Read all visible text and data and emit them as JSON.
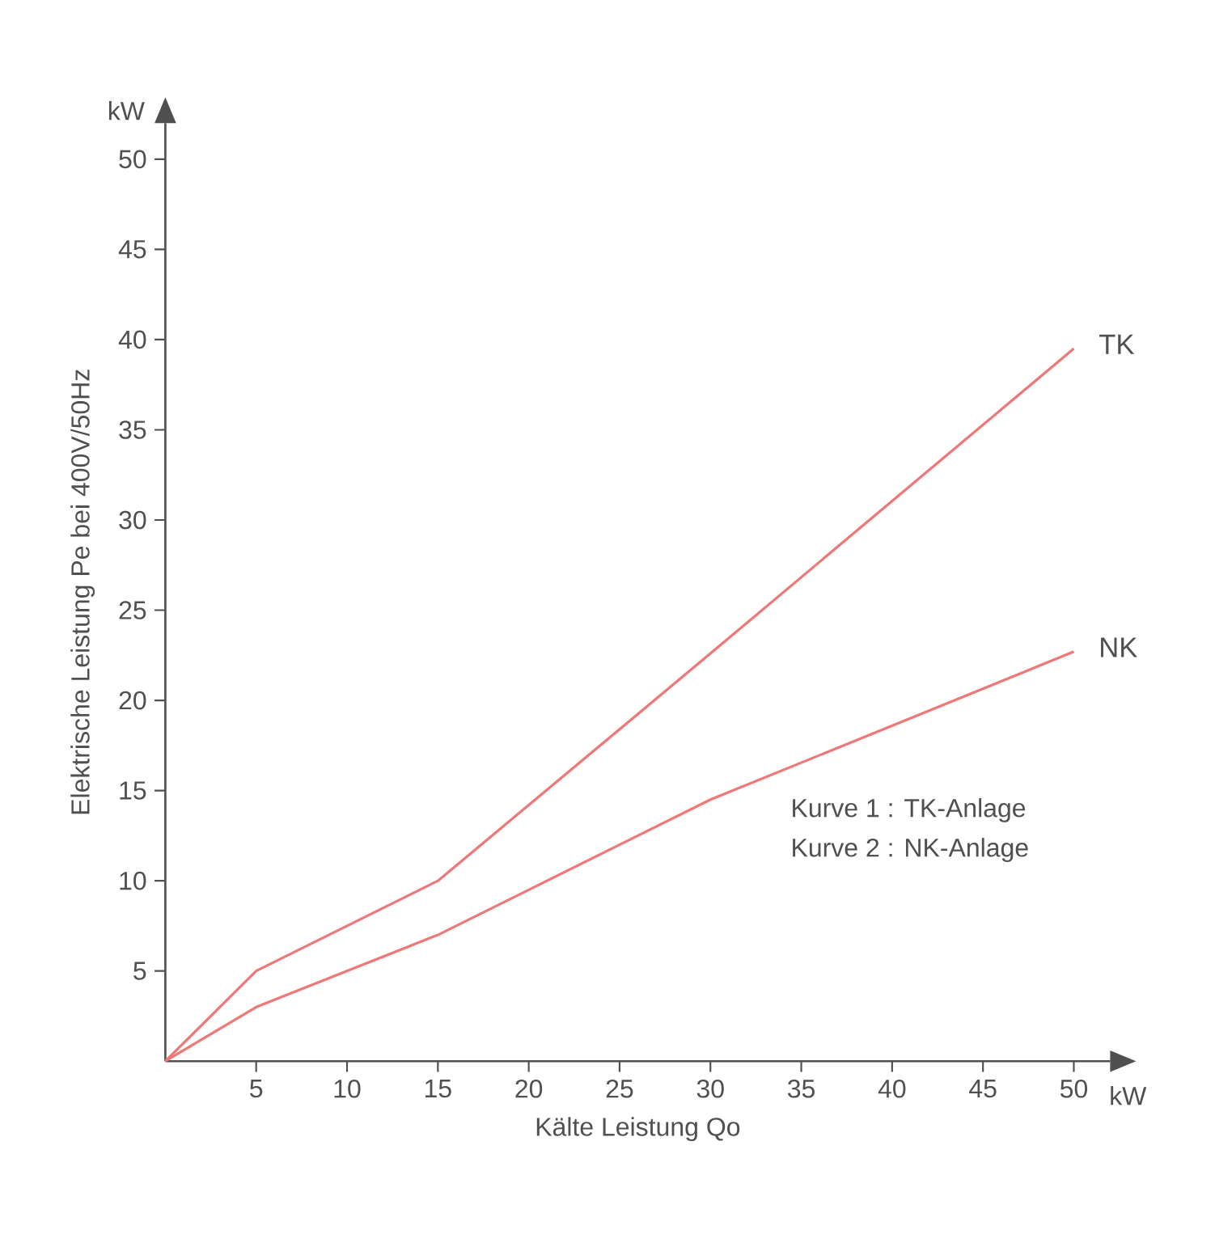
{
  "chart_data": {
    "type": "line",
    "xlabel": "Kälte Leistung Qo",
    "ylabel": "Elektrische Leistung Pe bei 400V/50Hz",
    "annotations": [
      "kW",
      "kW",
      "Kurve 1 : TK-Anlage",
      "Kurve 2 : NK-Anlage"
    ],
    "x": [
      0,
      5,
      15,
      30,
      50
    ],
    "series": [
      {
        "name": "TK",
        "color": "#ee7777",
        "values": [
          0,
          5,
          10,
          22.6,
          39.5
        ]
      },
      {
        "name": "NK",
        "color": "#ee7777",
        "values": [
          0,
          3,
          7,
          14.5,
          22.7
        ]
      }
    ],
    "xlim": [
      0,
      52
    ],
    "ylim": [
      0,
      52
    ],
    "xticks": [
      5,
      10,
      15,
      20,
      25,
      30,
      35,
      40,
      45,
      50
    ],
    "yticks": [
      5,
      10,
      15,
      20,
      25,
      30,
      35,
      40,
      45,
      50
    ],
    "grid": false,
    "legend": false,
    "marker": "none",
    "line_style": "solid"
  }
}
